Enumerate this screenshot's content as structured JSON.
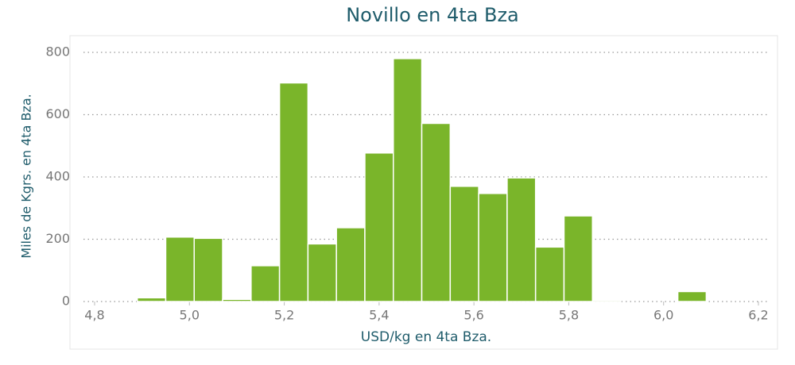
{
  "chart_data": {
    "type": "histogram",
    "title": "Novillo en 4ta Bza",
    "xlabel": "USD/kg en 4ta Bza.",
    "ylabel": "Miles de Kgrs. en 4ta Bza.",
    "bins": [
      4.89,
      4.95,
      5.01,
      5.07,
      5.13,
      5.19,
      5.25,
      5.31,
      5.37,
      5.43,
      5.49,
      5.55,
      5.61,
      5.67,
      5.73,
      5.79,
      5.85,
      5.91,
      5.97,
      6.03,
      6.09
    ],
    "values": [
      12,
      207,
      203,
      7,
      115,
      702,
      185,
      237,
      477,
      780,
      572,
      370,
      347,
      397,
      175,
      275,
      4,
      0,
      0,
      32
    ],
    "color": "#7ab52a",
    "xlim": [
      4.8,
      6.2
    ],
    "xticks": [
      {
        "value": 4.8,
        "label": "4,8"
      },
      {
        "value": 5.0,
        "label": "5,0"
      },
      {
        "value": 5.2,
        "label": "5,2"
      },
      {
        "value": 5.4,
        "label": "5,4"
      },
      {
        "value": 5.6,
        "label": "5,6"
      },
      {
        "value": 5.8,
        "label": "5,8"
      },
      {
        "value": 6.0,
        "label": "6,0"
      },
      {
        "value": 6.2,
        "label": "6,2"
      }
    ],
    "ylim": [
      0,
      800
    ],
    "yticks": [
      0,
      200,
      400,
      600,
      800
    ],
    "grid": true
  }
}
